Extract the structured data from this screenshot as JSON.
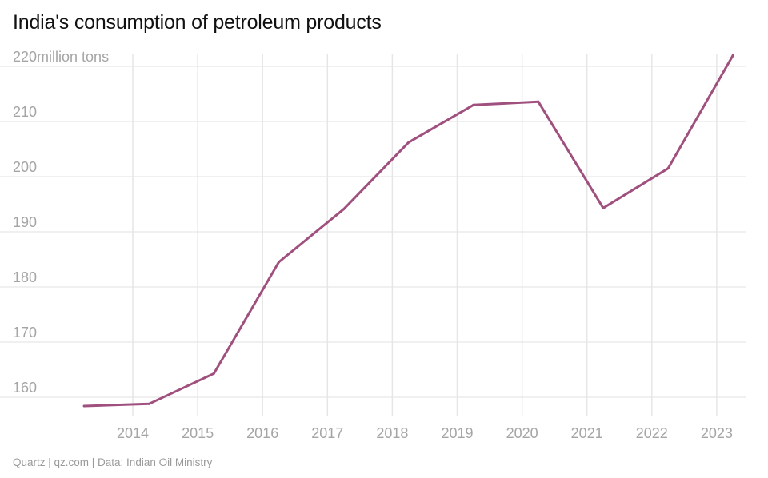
{
  "title": "India's consumption of petroleum products",
  "source": "Quartz | qz.com | Data: Indian Oil Ministry",
  "colors": {
    "line": "#a0507e",
    "grid": "#e6e6e6",
    "tick_text": "#a5a5a5",
    "title": "#111111",
    "source": "#9a9a9a"
  },
  "chart_data": {
    "type": "line",
    "title": "India's consumption of petroleum products",
    "ylabel": "million tons",
    "xlabel": "",
    "x_tick_labels": [
      "2014",
      "2015",
      "2016",
      "2017",
      "2018",
      "2019",
      "2020",
      "2021",
      "2022",
      "2023"
    ],
    "y_tick_labels": [
      "220million tons",
      "210",
      "200",
      "190",
      "180",
      "170",
      "160"
    ],
    "y_ticks": [
      220,
      210,
      200,
      190,
      180,
      170,
      160
    ],
    "ylim": [
      158,
      222
    ],
    "xlim": [
      2013.3,
      2023.3
    ],
    "grid": true,
    "legend": "none",
    "series": [
      {
        "x": [
          2013.25,
          2014.25,
          2015.25,
          2016.25,
          2017.25,
          2018.25,
          2019.25,
          2020.25,
          2021.25,
          2022.25,
          2023.25
        ],
        "values": [
          158.4,
          158.8,
          164.3,
          184.5,
          194.1,
          206.2,
          213.0,
          213.6,
          194.3,
          201.5,
          222.0
        ]
      }
    ]
  }
}
